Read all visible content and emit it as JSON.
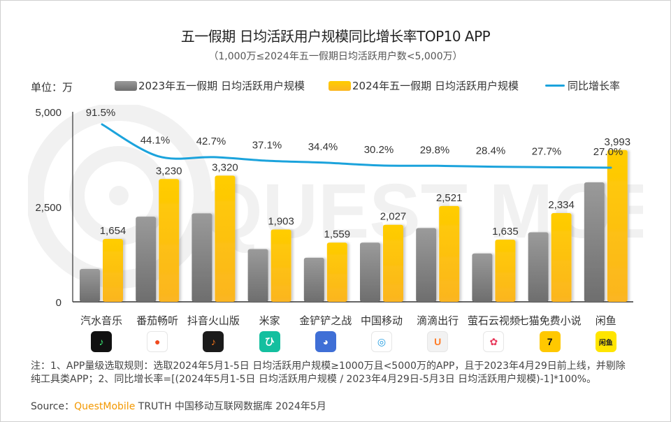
{
  "header": {
    "title": "五一假期 日均活跃用户规模同比增长率TOP10 APP",
    "subtitle": "（1,000万≤2024年五一假期日均活跃用户数<5,000万）",
    "unit": "单位：万"
  },
  "legend": {
    "series_2023": "2023年五一假期 日均活跃用户规模",
    "series_2024": "2024年五一假期 日均活跃用户规模",
    "growth": "同比增长率"
  },
  "watermark": "QUEST MOBILE",
  "colors": {
    "bar_2023_top": "#9a9a9a",
    "bar_2023_bottom": "#6e6e6e",
    "bar_2024_top": "#ffcd00",
    "bar_2024_bottom": "#fbb521",
    "growth_line": "#1ba3dc",
    "brand": "#f39800"
  },
  "chart_data": {
    "type": "bar",
    "title": "五一假期 日均活跃用户规模同比增长率TOP10 APP",
    "subtitle": "（1,000万≤2024年五一假期日均活跃用户数<5,000万）",
    "xlabel": "",
    "ylabel": "单位：万",
    "ylim": [
      0,
      5000
    ],
    "yticks": [
      0,
      2500,
      5000
    ],
    "ytick_labels": [
      "0",
      "2,500",
      "5,000"
    ],
    "grid": false,
    "legend_position": "top",
    "categories": [
      "汽水音乐",
      "番茄畅听",
      "抖音火山版",
      "米家",
      "金铲铲之战",
      "中国移动",
      "滴滴出行",
      "萤石云视频",
      "七猫免费小说",
      "闲鱼"
    ],
    "series": [
      {
        "name": "2023年五一假期 日均活跃用户规模",
        "type": "bar",
        "values": [
          864,
          2241,
          2327,
          1388,
          1160,
          1557,
          1942,
          1273,
          1828,
          3144
        ],
        "labels_shown": false
      },
      {
        "name": "2024年五一假期 日均活跃用户规模",
        "type": "bar",
        "values": [
          1654,
          3230,
          3320,
          1903,
          1559,
          2027,
          2521,
          1635,
          2334,
          3993
        ],
        "data_labels": [
          "1,654",
          "3,230",
          "3,320",
          "1,903",
          "1,559",
          "2,027",
          "2,521",
          "1,635",
          "2,334",
          "3,993"
        ]
      },
      {
        "name": "同比增长率",
        "type": "line",
        "values": [
          91.5,
          44.1,
          42.7,
          37.1,
          34.4,
          30.2,
          29.8,
          28.4,
          27.7,
          27.0
        ],
        "unit": "%",
        "data_labels": [
          "91.5%",
          "44.1%",
          "42.7%",
          "37.1%",
          "34.4%",
          "30.2%",
          "29.8%",
          "28.4%",
          "27.7%",
          "27.0%"
        ]
      }
    ]
  },
  "app_icons": [
    {
      "name": "汽水音乐",
      "icon": "music-note-icon",
      "bg": "#111111",
      "fg": "#3df07a",
      "glyph": "♪"
    },
    {
      "name": "番茄畅听",
      "icon": "tomato-listen-icon",
      "bg": "#ffffff",
      "fg": "#f04a1e",
      "glyph": "●"
    },
    {
      "name": "抖音火山版",
      "icon": "douyin-huoshan-icon",
      "bg": "#1b1b1b",
      "fg": "#ff7a1a",
      "glyph": "♪"
    },
    {
      "name": "米家",
      "icon": "mijia-icon",
      "bg": "#14bf9f",
      "fg": "#ffffff",
      "glyph": "ひ"
    },
    {
      "name": "金铲铲之战",
      "icon": "jinchanchan-icon",
      "bg": "#3f6fd6",
      "fg": "#ffffff",
      "glyph": "◕"
    },
    {
      "name": "中国移动",
      "icon": "china-mobile-icon",
      "bg": "#ffffff",
      "fg": "#1f9be0",
      "glyph": "◎"
    },
    {
      "name": "滴滴出行",
      "icon": "didi-icon",
      "bg": "#f2f2f2",
      "fg": "#ff7d29",
      "glyph": "U"
    },
    {
      "name": "萤石云视频",
      "icon": "ezviz-icon",
      "bg": "#ffffff",
      "fg": "#e8385a",
      "glyph": "✿"
    },
    {
      "name": "七猫免费小说",
      "icon": "qimao-icon",
      "bg": "#ffc800",
      "fg": "#111111",
      "glyph": "7"
    },
    {
      "name": "闲鱼",
      "icon": "xianyu-icon",
      "bg": "#ffe500",
      "fg": "#222222",
      "glyph": "闲鱼"
    }
  ],
  "footer": {
    "notes": "注：1、APP量级选取规则：选取2024年5月1-5日 日均活跃用户规模≥1000万且<5000万的APP，且于2023年4月29日前上线，并剔除纯工具类APP；2、同比增长率=[(2024年5月1-5日 日均活跃用户规模 / 2023年4月29日-5月3日 日均活跃用户规模)-1]*100%。",
    "source_prefix": "Source：",
    "source_brand": "QuestMobile",
    "source_suffix": " TRUTH 中国移动互联网数据库 2024年5月"
  }
}
